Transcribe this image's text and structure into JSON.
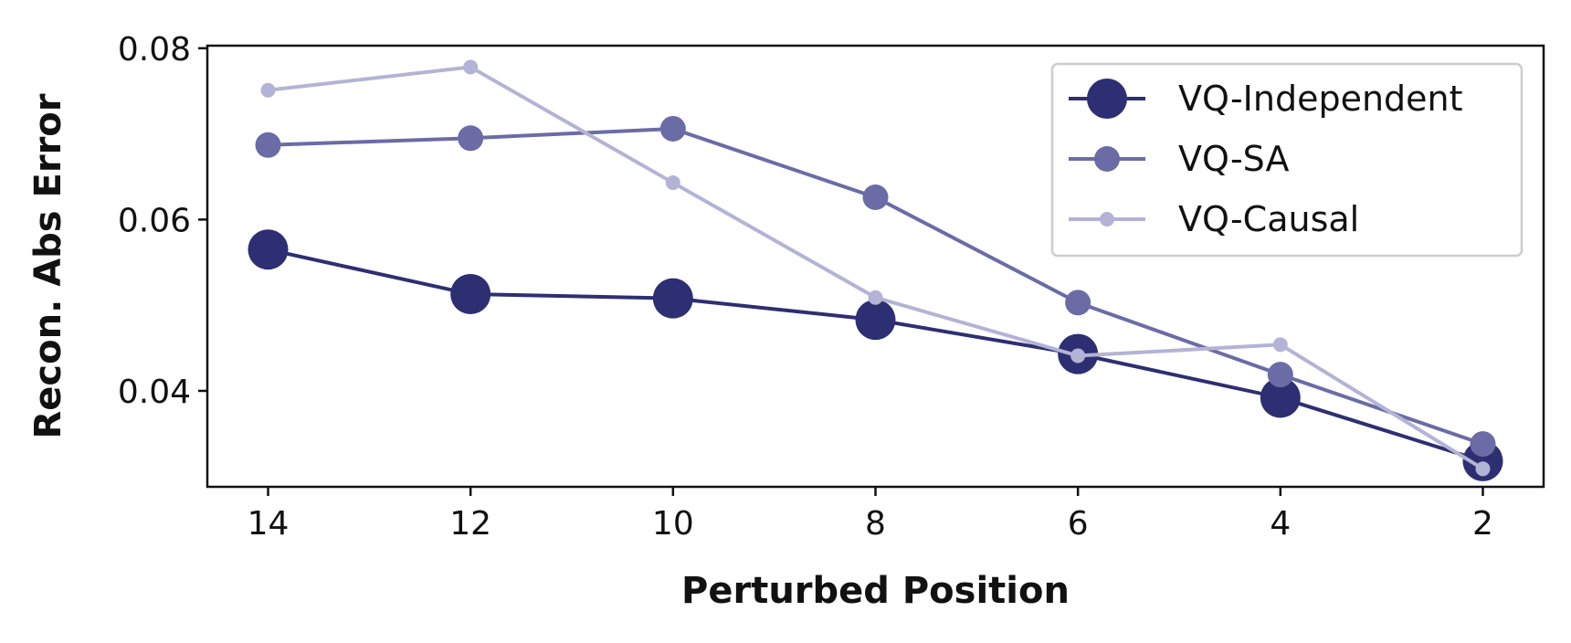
{
  "chart_data": {
    "type": "line",
    "title": "",
    "xlabel": "Perturbed Position",
    "ylabel": "Recon. Abs Error",
    "x": [
      14,
      12,
      10,
      8,
      6,
      4,
      2
    ],
    "x_ticks": [
      "14",
      "12",
      "10",
      "8",
      "6",
      "4",
      "2"
    ],
    "y_ticks": [
      "0.04",
      "0.06",
      "0.08"
    ],
    "xlim": [
      14.6,
      1.4
    ],
    "ylim": [
      0.0288,
      0.0803
    ],
    "x_inverted": true,
    "grid": false,
    "legend_position": "top-right",
    "series": [
      {
        "name": "VQ-Independent",
        "color": "#2e2e73",
        "marker": "large",
        "values": [
          0.0565,
          0.0513,
          0.0508,
          0.0483,
          0.0443,
          0.0392,
          0.0318
        ]
      },
      {
        "name": "VQ-SA",
        "color": "#6b6ba6",
        "marker": "medium",
        "values": [
          0.0687,
          0.0695,
          0.0706,
          0.0626,
          0.0503,
          0.0419,
          0.0338
        ]
      },
      {
        "name": "VQ-Causal",
        "color": "#b3b3d6",
        "marker": "small",
        "values": [
          0.0751,
          0.0778,
          0.0643,
          0.0509,
          0.0441,
          0.0454,
          0.0309
        ]
      }
    ]
  }
}
